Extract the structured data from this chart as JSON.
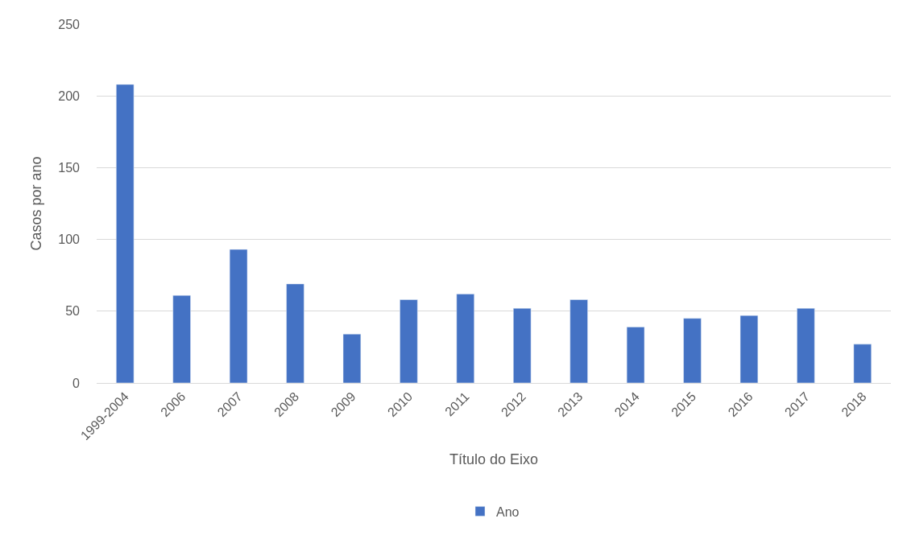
{
  "chart_data": {
    "type": "bar",
    "xlabel": "Título do Eixo",
    "ylabel": "Casos por ano",
    "categories": [
      "1999-2004",
      "2006",
      "2007",
      "2008",
      "2009",
      "2010",
      "2011",
      "2012",
      "2013",
      "2014",
      "2015",
      "2016",
      "2017",
      "2018"
    ],
    "series": [
      {
        "name": "Ano",
        "color": "#4472c4",
        "values": [
          208,
          61,
          93,
          69,
          34,
          58,
          62,
          52,
          58,
          39,
          45,
          47,
          52,
          27
        ]
      }
    ],
    "ylim": [
      0,
      250
    ],
    "yticks": [
      0,
      50,
      100,
      150,
      200,
      250
    ],
    "grid": "y",
    "legend": "bottom"
  }
}
